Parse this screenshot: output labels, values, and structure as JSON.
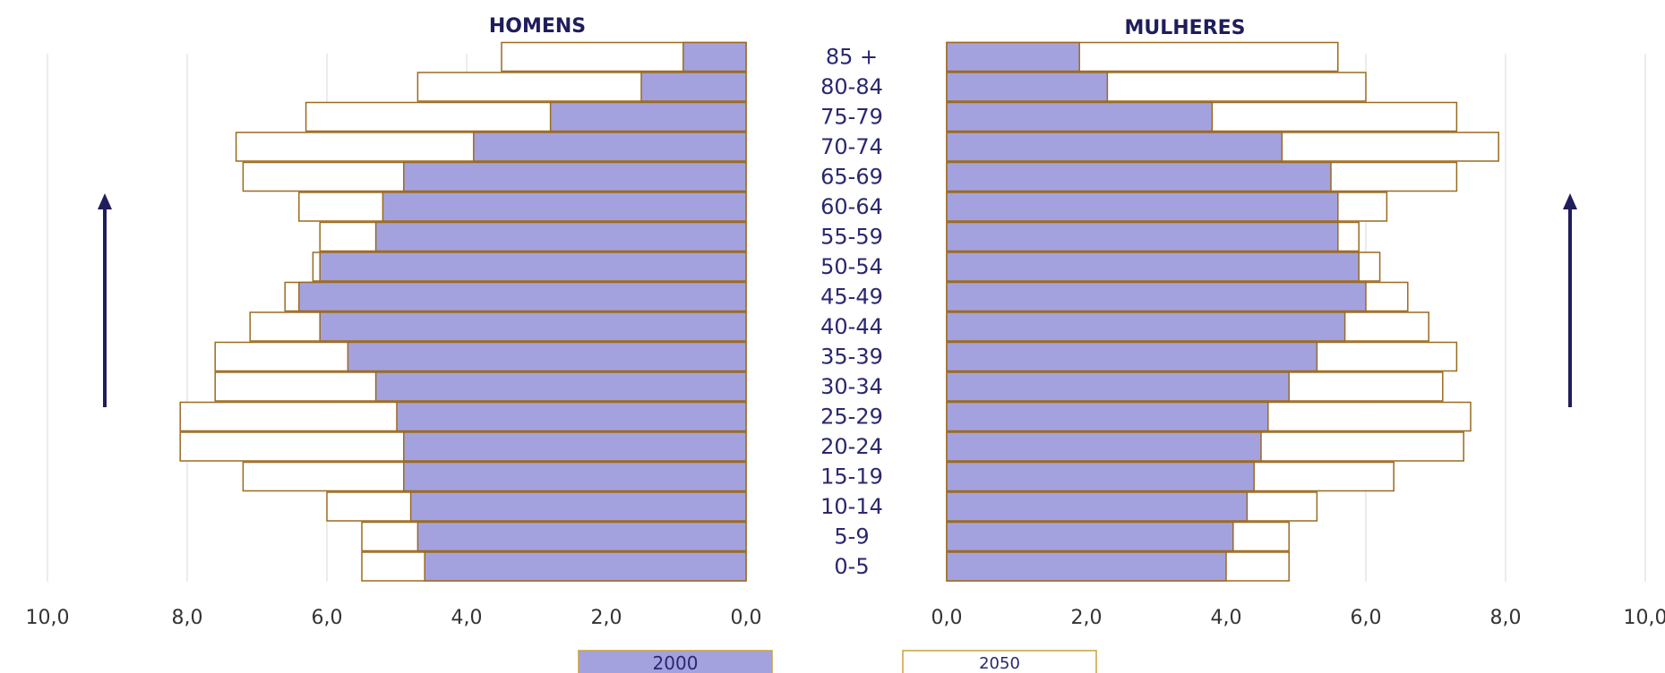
{
  "chart_data": {
    "type": "bar",
    "orientation": "horizontal",
    "style": "population-pyramid",
    "categories": [
      "0-5",
      "5-9",
      "10-14",
      "15-19",
      "20-24",
      "25-29",
      "30-34",
      "35-39",
      "40-44",
      "45-49",
      "50-54",
      "55-59",
      "60-64",
      "65-69",
      "70-74",
      "75-79",
      "80-84",
      "85 +"
    ],
    "panels": [
      {
        "title": "HOMENS",
        "side": "left",
        "series": [
          {
            "name": "2000",
            "values": [
              4.6,
              4.7,
              4.8,
              4.9,
              4.9,
              5.0,
              5.3,
              5.7,
              6.1,
              6.4,
              6.1,
              5.3,
              5.2,
              4.9,
              3.9,
              2.8,
              1.5,
              0.9
            ]
          },
          {
            "name": "2050",
            "values": [
              5.5,
              5.5,
              6.0,
              7.2,
              8.1,
              8.1,
              7.6,
              7.6,
              7.1,
              6.6,
              6.2,
              6.1,
              6.4,
              7.2,
              7.3,
              6.3,
              4.7,
              3.5
            ]
          }
        ]
      },
      {
        "title": "MULHERES",
        "side": "right",
        "series": [
          {
            "name": "2000",
            "values": [
              4.0,
              4.1,
              4.3,
              4.4,
              4.5,
              4.6,
              4.9,
              5.3,
              5.7,
              6.0,
              5.9,
              5.6,
              5.6,
              5.5,
              4.8,
              3.8,
              2.3,
              1.9
            ]
          },
          {
            "name": "2050",
            "values": [
              4.9,
              4.9,
              5.3,
              6.4,
              7.4,
              7.5,
              7.1,
              7.3,
              6.9,
              6.6,
              6.2,
              5.9,
              6.3,
              7.3,
              7.9,
              7.3,
              6.0,
              5.6
            ]
          }
        ]
      }
    ],
    "left_ticks": [
      "10,0",
      "8,0",
      "6,0",
      "4,0",
      "2,0",
      "0,0"
    ],
    "right_ticks": [
      "0,0",
      "2,0",
      "4,0",
      "6,0",
      "8,0",
      "10,0"
    ],
    "xlim": [
      0,
      10
    ],
    "grid": true,
    "legend": {
      "position": "bottom",
      "items": [
        "2000",
        "2050"
      ]
    },
    "colors": {
      "fill_2000": "#a4a2de",
      "border": "#9b6a1f",
      "legend_2050_border": "#c9a23a",
      "arrow": "#1f1d5b",
      "grid": "#d9d9d9"
    }
  }
}
